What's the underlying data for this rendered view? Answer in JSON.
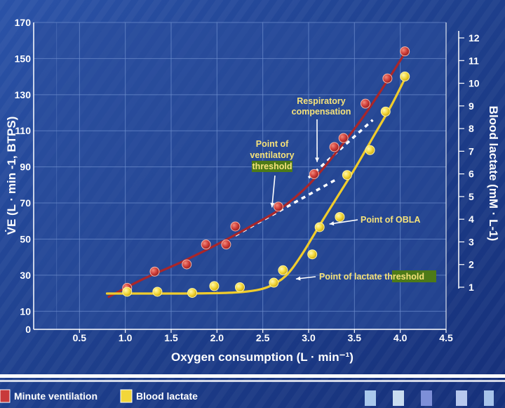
{
  "chart_data": {
    "type": "scatter",
    "xlabel": "Oxygen consumption (L · min⁻¹)",
    "ylabel_left": "V̇E (L · min -1, BTPS)",
    "ylabel_right": "Blood lactate (mM · L-1)",
    "xlim": [
      0,
      4.5
    ],
    "ylim_left": [
      0,
      170
    ],
    "ylim_right": [
      0,
      13
    ],
    "x_ticks": [
      0.5,
      1.0,
      1.5,
      2.0,
      2.5,
      3.0,
      3.5,
      4.0,
      4.5
    ],
    "x_tick_labels": [
      "0.5",
      "1.0",
      "1.5",
      "2.0",
      "2.5",
      "3.0",
      "3.5",
      "4.0",
      "4.5"
    ],
    "y_left_ticks": [
      0,
      10,
      30,
      50,
      70,
      90,
      110,
      130,
      150,
      170
    ],
    "y_left_tick_labels": [
      "0",
      "10",
      "30",
      "50",
      "70",
      "90",
      "110",
      "130",
      "150",
      "170"
    ],
    "y_right_ticks": [
      1,
      2,
      3,
      4,
      5,
      6,
      7,
      8,
      9,
      10,
      11,
      12
    ],
    "y_right_tick_labels": [
      "1",
      "2",
      "3",
      "4",
      "5",
      "6",
      "7",
      "8",
      "9",
      "10",
      "11",
      "12"
    ],
    "series": [
      {
        "name": "Minute ventilation",
        "axis": "left",
        "color": "#c83a3a",
        "line_color": "#a8262a",
        "x": [
          1.02,
          1.32,
          1.67,
          1.88,
          2.1,
          2.2,
          2.67,
          3.06,
          3.28,
          3.38,
          3.62,
          3.86,
          4.05
        ],
        "y": [
          23,
          32,
          36,
          47,
          47,
          57,
          68,
          86,
          101,
          106,
          125,
          139,
          154
        ],
        "fit_x": [
          0.82,
          1.2,
          1.6,
          2.0,
          2.4,
          2.7,
          3.0,
          3.3,
          3.6,
          3.85,
          4.05
        ],
        "fit_y": [
          18,
          28,
          37,
          47,
          58,
          67,
          80,
          98,
          118,
          137,
          153
        ]
      },
      {
        "name": "Blood lactate",
        "axis": "right",
        "color": "#f2d63a",
        "line_color": "#f0cc2c",
        "x": [
          1.02,
          1.35,
          1.73,
          1.97,
          2.25,
          2.62,
          2.72,
          3.04,
          3.12,
          3.34,
          3.42,
          3.67,
          3.84,
          4.05
        ],
        "y": [
          0.8,
          0.8,
          0.75,
          1.05,
          1.0,
          1.2,
          1.75,
          2.45,
          3.65,
          4.1,
          5.95,
          7.05,
          8.75,
          10.3
        ],
        "fit_x": [
          0.8,
          1.2,
          1.6,
          2.0,
          2.3,
          2.55,
          2.75,
          2.92,
          3.1,
          3.3,
          3.5,
          3.7,
          3.9,
          4.05
        ],
        "fit_y": [
          0.72,
          0.72,
          0.72,
          0.74,
          0.8,
          1.0,
          1.5,
          2.4,
          3.6,
          4.9,
          6.2,
          7.6,
          9.0,
          10.2
        ]
      }
    ],
    "reference_lines": [
      {
        "name": "ventilation-extrapolation",
        "x": [
          2.2,
          3.3
        ],
        "y": [
          52,
          83
        ],
        "style": "dashed-white"
      },
      {
        "name": "compensation-extrapolation",
        "x": [
          3.0,
          3.7
        ],
        "y": [
          84,
          116
        ],
        "style": "dashed-white"
      }
    ],
    "annotations": [
      {
        "text": "Respiratory compensation",
        "lines": [
          "Respiratory",
          "compensation"
        ],
        "target_x": 3.07,
        "target_y": 88,
        "axis": "left"
      },
      {
        "text": "Point of ventilatory threshold",
        "lines": [
          "Point of",
          "ventilatory",
          "threshold"
        ],
        "highlight_line": 2,
        "target_x": 2.6,
        "target_y": 66,
        "axis": "left"
      },
      {
        "text": "Point of OBLA",
        "target_x": 3.12,
        "target_y": 3.85,
        "axis": "right"
      },
      {
        "text": "Point of lactate threshold",
        "highlight_word": "threshold",
        "target_x": 2.77,
        "target_y": 1.55,
        "axis": "right"
      }
    ]
  },
  "legend": {
    "items": [
      {
        "label": "Minute ventilation",
        "color": "#c83a3a"
      },
      {
        "label": "Blood lactate",
        "color": "#f2d63a"
      }
    ]
  },
  "colors": {
    "background": "#1f3f8a",
    "plot_background": "#2c4f9c",
    "grid": "#6f8fcf",
    "highlight": "#4d7a18",
    "legend_band": "#ffffff"
  }
}
